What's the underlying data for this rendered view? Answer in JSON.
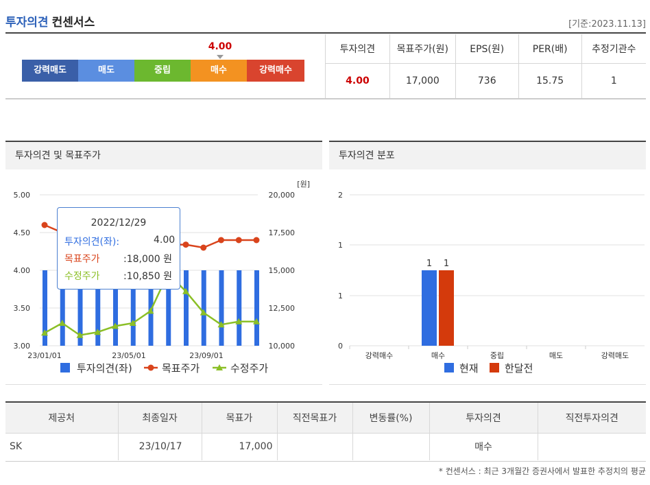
{
  "header": {
    "title_main": "투자의견",
    "title_sub": "컨센서스",
    "ref_date": "[기준:2023.11.13]"
  },
  "gauge": {
    "current": "4.00",
    "segments": [
      {
        "label": "강력매도",
        "color": "#3a5fa8"
      },
      {
        "label": "매도",
        "color": "#5b8ee0"
      },
      {
        "label": "중립",
        "color": "#6cb82f"
      },
      {
        "label": "매수",
        "color": "#f39221"
      },
      {
        "label": "강력매수",
        "color": "#d9442e"
      }
    ]
  },
  "summary": {
    "headers": [
      "투자의견",
      "목표주가(원)",
      "EPS(원)",
      "PER(배)",
      "추정기관수"
    ],
    "values": [
      "4.00",
      "17,000",
      "736",
      "15.75",
      "1"
    ]
  },
  "left_panel": {
    "title": "투자의견 및 목표주가"
  },
  "right_panel": {
    "title": "투자의견 분포"
  },
  "tooltip": {
    "date": "2022/12/29",
    "opinion_label": "투자의견(좌):",
    "opinion_value": "4.00",
    "target_label": "목표주가",
    "target_value": ":18,000 원",
    "adjusted_label": "수정주가",
    "adjusted_value": ":10,850 원"
  },
  "chart_data": [
    {
      "type": "bar+line",
      "y_left_ticks": [
        "5.00",
        "4.50",
        "4.00",
        "3.50",
        "3.00"
      ],
      "y_right_ticks": [
        "20,000",
        "17,500",
        "15,000",
        "12,500",
        "10,000"
      ],
      "y_right_unit": "[원]",
      "x_ticks": [
        "23/01/01",
        "23/05/01",
        "23/09/01"
      ],
      "ylim_left": [
        3.0,
        5.0
      ],
      "ylim_right": [
        10000,
        20000
      ],
      "series": [
        {
          "name": "투자의견(좌)",
          "type": "bar",
          "color": "#2f6de0",
          "values": [
            4.0,
            4.0,
            4.0,
            4.0,
            4.0,
            4.0,
            4.0,
            4.0,
            4.0,
            4.0,
            4.0,
            4.0,
            4.0
          ]
        },
        {
          "name": "목표주가",
          "type": "line",
          "color": "#d9441c",
          "values": [
            18000,
            17500,
            17400,
            17300,
            17200,
            17100,
            17000,
            16700,
            16700,
            16500,
            17000,
            17000,
            17000
          ]
        },
        {
          "name": "수정주가",
          "type": "line",
          "color": "#8bbf26",
          "values": [
            10850,
            11500,
            10700,
            10900,
            11300,
            11500,
            12300,
            14800,
            13600,
            12200,
            11400,
            11600,
            11600
          ]
        }
      ]
    },
    {
      "type": "bar",
      "categories": [
        "강력매수",
        "매수",
        "중립",
        "매도",
        "강력매도"
      ],
      "y_ticks": [
        "2",
        "1",
        "1",
        "0"
      ],
      "ylim": [
        0,
        2
      ],
      "series": [
        {
          "name": "현재",
          "color": "#2f6de0",
          "values": [
            0,
            1,
            0,
            0,
            0
          ]
        },
        {
          "name": "한달전",
          "color": "#d43a0c",
          "values": [
            0,
            1,
            0,
            0,
            0
          ]
        }
      ],
      "data_labels": [
        "1",
        "1"
      ]
    }
  ],
  "broker_table": {
    "headers": [
      "제공처",
      "최종일자",
      "목표가",
      "직전목표가",
      "변동률(%)",
      "투자의견",
      "직전투자의견"
    ],
    "rows": [
      [
        "SK",
        "23/10/17",
        "17,000",
        "",
        "",
        "매수",
        ""
      ]
    ]
  },
  "footnote": "* 컨센서스 : 최근 3개월간 증권사에서 발표한 추정치의 평균"
}
